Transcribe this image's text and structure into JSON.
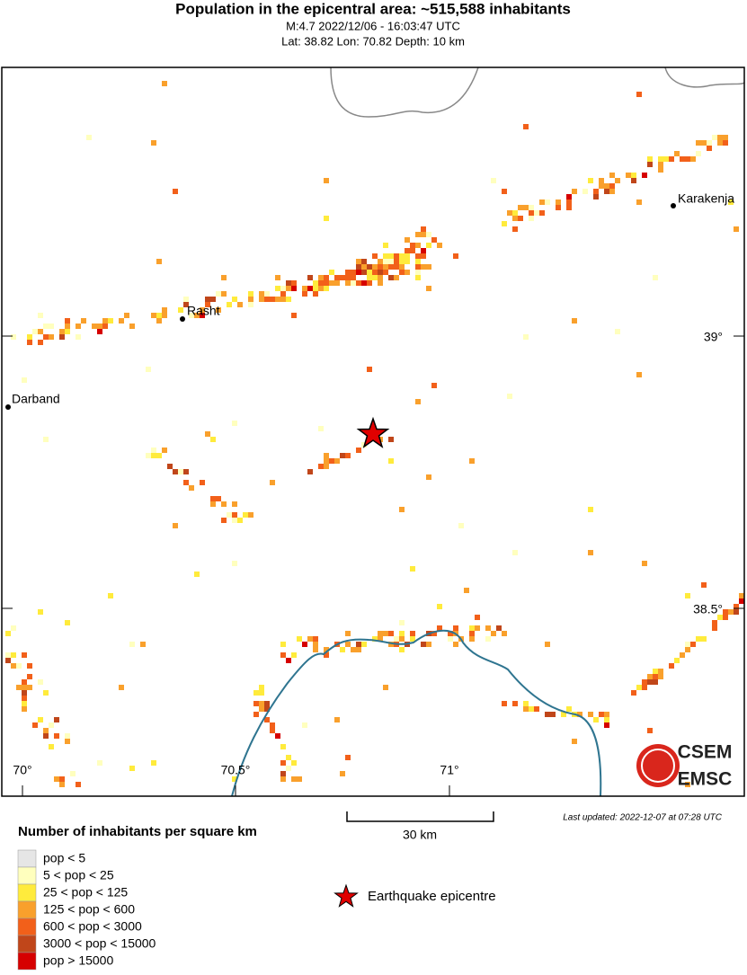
{
  "header": {
    "title": "Population in the epicentral area: ~515,588 inhabitants",
    "event": "M:4.7 2022/12/06 - 16:03:47 UTC",
    "location": "Lat: 38.82 Lon: 70.82 Depth: 10 km"
  },
  "map": {
    "places": [
      {
        "label": "Karakenja"
      },
      {
        "label": "Rasht"
      },
      {
        "label": "Darband"
      }
    ],
    "lat_labels": [
      "39°",
      "38.5°"
    ],
    "lon_labels": [
      "70°",
      "70.5°",
      "71°"
    ],
    "scale": "30 km",
    "updated": "Last updated: 2022-12-07 at 07:28 UTC",
    "logo": [
      "CSEM",
      "EMSC"
    ]
  },
  "legend": {
    "title": "Number of inhabitants per square km",
    "items": [
      {
        "label": "pop < 5",
        "color": "#e6e6e6"
      },
      {
        "label": "5 < pop < 25",
        "color": "#ffffbe"
      },
      {
        "label": "25 < pop < 125",
        "color": "#ffeb3c"
      },
      {
        "label": "125 < pop < 600",
        "color": "#f9a02c"
      },
      {
        "label": "600 < pop < 3000",
        "color": "#f2601a"
      },
      {
        "label": "3000 < pop < 15000",
        "color": "#c0461a"
      },
      {
        "label": "pop > 15000",
        "color": "#d60000"
      }
    ],
    "epicentre": "Earthquake epicentre"
  }
}
